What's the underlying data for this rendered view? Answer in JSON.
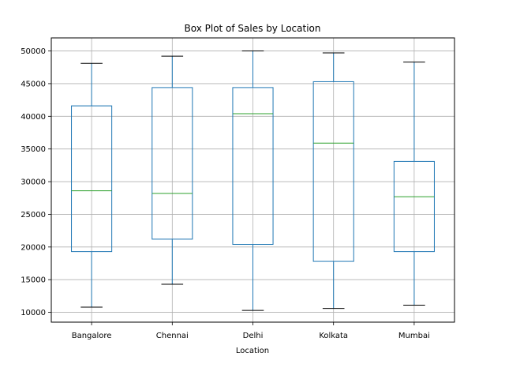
{
  "chart_data": {
    "type": "box",
    "title": "Box Plot of Sales by Location",
    "xlabel": "Location",
    "ylabel": "",
    "ylim": [
      8500,
      52000
    ],
    "yticks": [
      10000,
      15000,
      20000,
      25000,
      30000,
      35000,
      40000,
      45000,
      50000
    ],
    "grid": true,
    "categories": [
      "Bangalore",
      "Chennai",
      "Delhi",
      "Kolkata",
      "Mumbai"
    ],
    "boxes": [
      {
        "whisker_low": 10800,
        "q1": 19300,
        "median": 28600,
        "q3": 41600,
        "whisker_high": 48100
      },
      {
        "whisker_low": 14300,
        "q1": 21200,
        "median": 28200,
        "q3": 44400,
        "whisker_high": 49200
      },
      {
        "whisker_low": 10300,
        "q1": 20400,
        "median": 40400,
        "q3": 44400,
        "whisker_high": 50000
      },
      {
        "whisker_low": 10600,
        "q1": 17800,
        "median": 35900,
        "q3": 45300,
        "whisker_high": 49700
      },
      {
        "whisker_low": 11100,
        "q1": 19300,
        "median": 27700,
        "q3": 33100,
        "whisker_high": 48300
      }
    ],
    "colors": {
      "box": "#1f77b4",
      "median": "#2ca02c",
      "cap": "#000000",
      "grid": "#b0b0b0",
      "axis": "#000000"
    }
  }
}
